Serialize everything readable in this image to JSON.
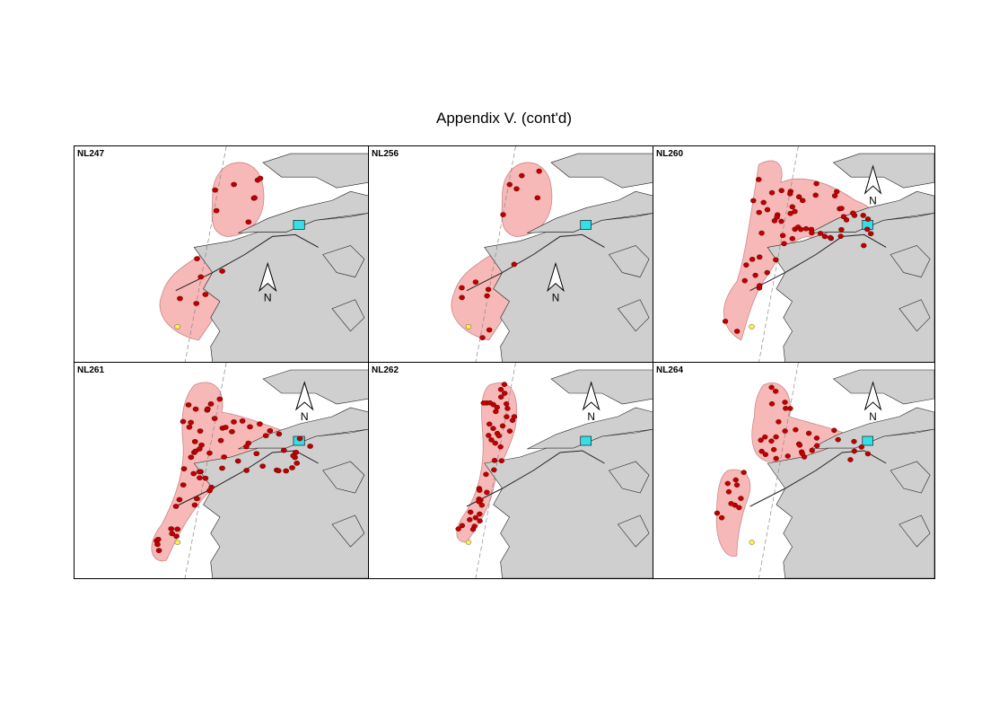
{
  "title": "Appendix V.  (cont'd)",
  "panels": [
    {
      "label": "NL247",
      "north": "N"
    },
    {
      "label": "NL256",
      "north": "N"
    },
    {
      "label": "NL260",
      "north": "N"
    },
    {
      "label": "NL261",
      "north": "N"
    },
    {
      "label": "NL262",
      "north": "N"
    },
    {
      "label": "NL264",
      "north": "N"
    }
  ]
}
